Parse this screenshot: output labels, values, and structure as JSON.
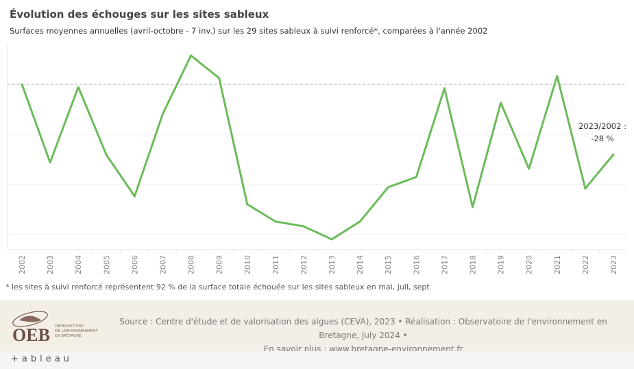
{
  "title": "Évolution des échouges sur les sites sableux",
  "subtitle": "Surfaces moyennes annuelles (avril-octobre - 7 inv.) sur les 29 sites sableux à suivi renforcé*, comparées à l'année 2002",
  "note": "* les sites à suivi renforcé représentent 92 % de la surface totale échouée sur les sites sableux en mai, jull, sept",
  "annotation": {
    "line1": "2023/2002 :",
    "line2": "-28 %"
  },
  "footer": {
    "source_line1": "Source : Centre d'étude et de valorisation des algues (CEVA), 2023 • Réalisation : Observatoire de l'environnement en",
    "source_line2": "Bretagne, July 2024 •",
    "source_line3": "En savoir plus : www.bretagne-environnement.fr",
    "logo_text": "OEB",
    "logo_sub": "OBSERVATOIRE DE L'ENVIRONNEMENT EN BRETAGNE",
    "tableau": "+ableau"
  },
  "colors": {
    "line": "#6cbb5a",
    "reference": "#bbbbbb",
    "grid": "#eeeeee"
  },
  "chart_data": {
    "type": "line",
    "x": [
      "2002",
      "2003",
      "2004",
      "2005",
      "2006",
      "2007",
      "2008",
      "2009",
      "2010",
      "2011",
      "2012",
      "2013",
      "2014",
      "2015",
      "2016",
      "2017",
      "2018",
      "2019",
      "2020",
      "2021",
      "2022",
      "2023"
    ],
    "values": [
      100,
      68.8,
      98.9,
      71.8,
      55.3,
      88.2,
      111.5,
      102.5,
      52.1,
      45.2,
      43.3,
      38.1,
      45.2,
      58.9,
      63.0,
      98.4,
      51.0,
      92.6,
      66.3,
      103.3,
      58.4,
      72
    ],
    "reference_line": 100,
    "ylim": [
      34,
      119
    ],
    "gridlines": [
      100,
      80,
      60,
      40
    ],
    "grid": true,
    "yticks_shown": false
  }
}
